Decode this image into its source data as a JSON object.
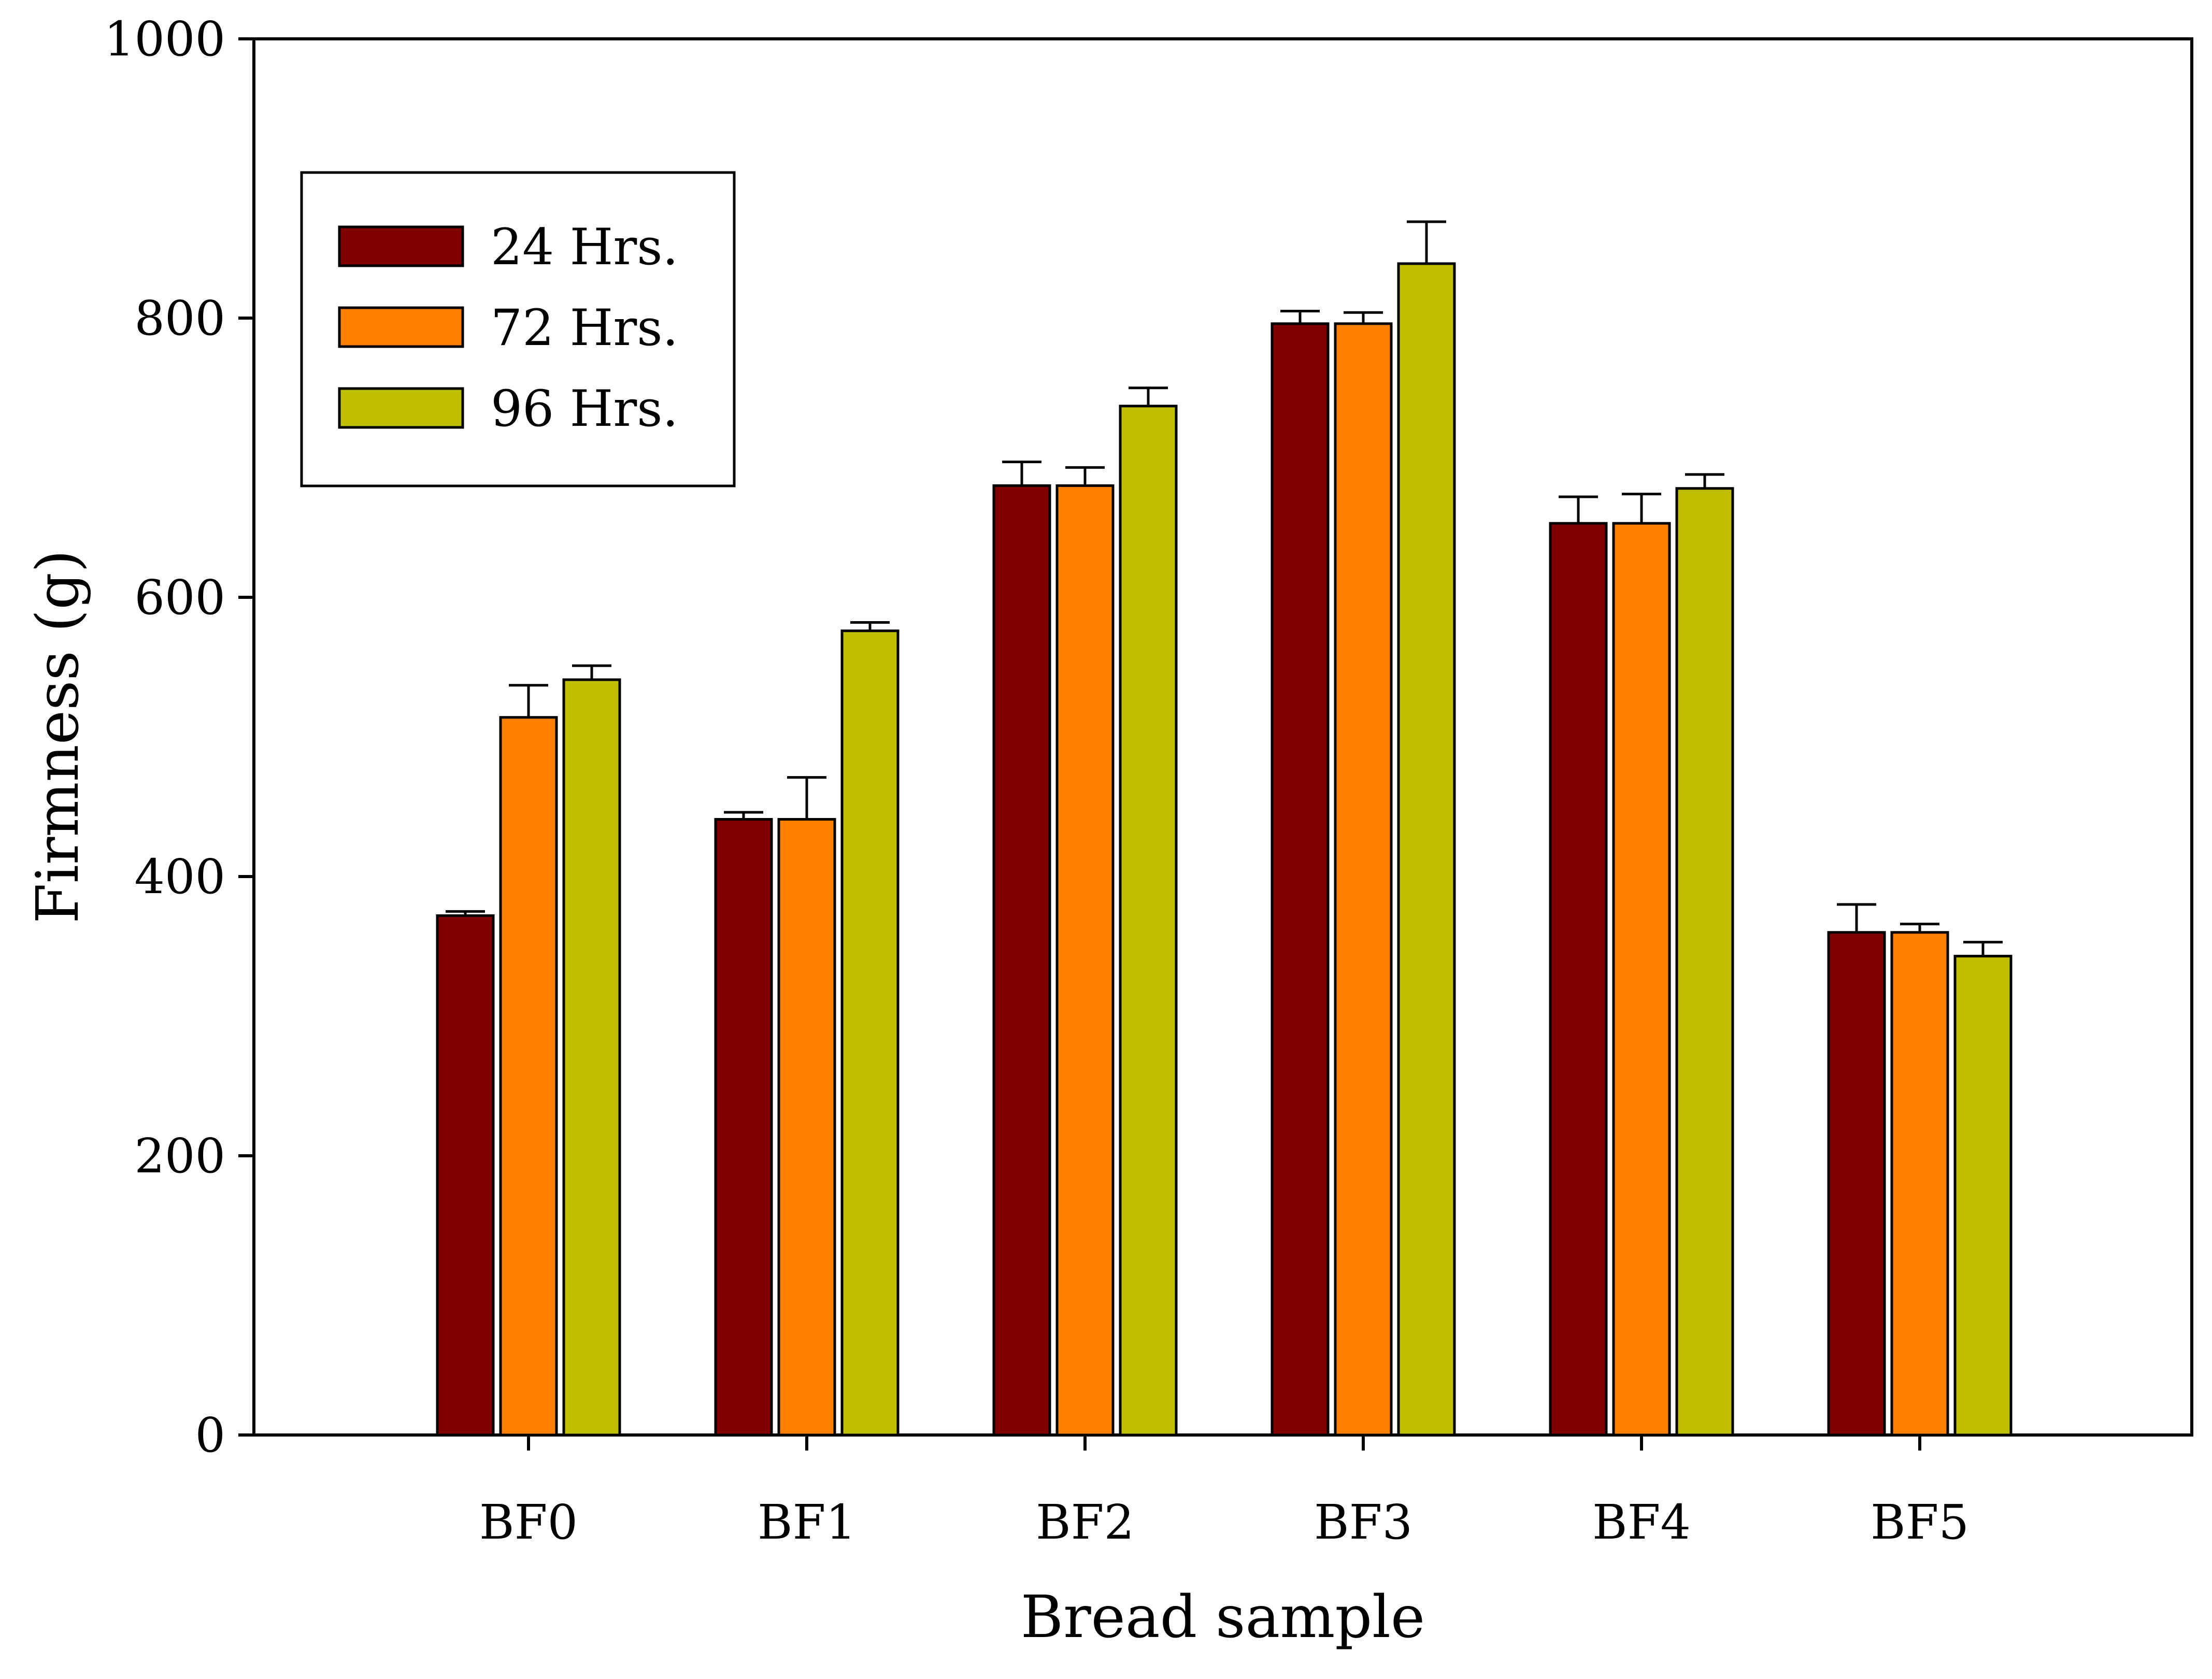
{
  "chart_data": {
    "type": "bar",
    "xlabel": "Bread sample",
    "ylabel": "Firmness (g)",
    "ylim": [
      0,
      1000
    ],
    "yticks": [
      0,
      200,
      400,
      600,
      800,
      1000
    ],
    "grid": false,
    "legend_position": "top-left",
    "categories": [
      "BF0",
      "BF1",
      "BF2",
      "BF3",
      "BF4",
      "BF5"
    ],
    "series": [
      {
        "name": "24 Hrs.",
        "color": "#800000",
        "values": [
          372,
          441,
          680,
          796,
          653,
          360
        ],
        "errors": [
          3,
          5,
          17,
          9,
          19,
          20
        ]
      },
      {
        "name": "72 Hrs.",
        "color": "#ff8000",
        "values": [
          514,
          441,
          680,
          796,
          653,
          360
        ],
        "errors": [
          23,
          30,
          13,
          8,
          21,
          6
        ]
      },
      {
        "name": "96 Hrs.",
        "color": "#bfbf00",
        "values": [
          541,
          576,
          737,
          839,
          678,
          343
        ],
        "errors": [
          10,
          6,
          13,
          30,
          10,
          10
        ]
      }
    ]
  }
}
